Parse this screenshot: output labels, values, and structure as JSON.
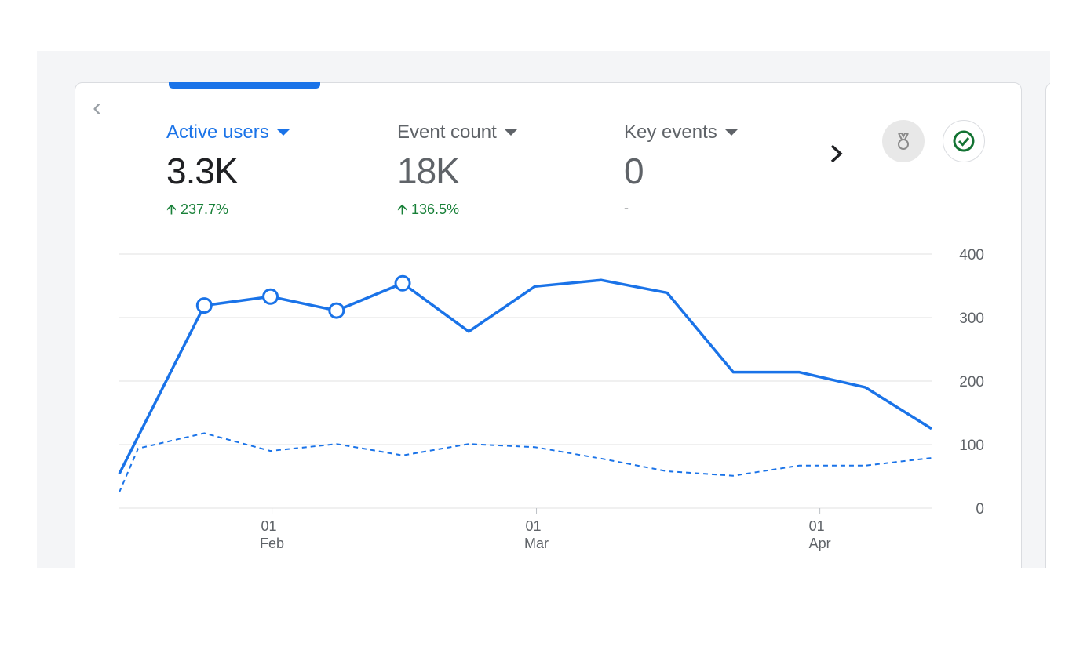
{
  "metrics": [
    {
      "label": "Active users",
      "value": "3.3K",
      "change": "237.7%",
      "direction": "up",
      "active": true
    },
    {
      "label": "Event count",
      "value": "18K",
      "change": "136.5%",
      "direction": "up",
      "active": false
    },
    {
      "label": "Key events",
      "value": "0",
      "change": "-",
      "direction": "none",
      "active": false
    }
  ],
  "icons": {
    "prev": "chevron-left-icon",
    "next": "chevron-right-icon",
    "badge": "medal-icon",
    "status": "check-circle-icon"
  },
  "colors": {
    "accent": "#1a73e8",
    "positive": "#188038"
  },
  "chart_data": {
    "type": "line",
    "ylim": [
      0,
      400
    ],
    "yticks": [
      "0",
      "100",
      "200",
      "300",
      "400"
    ],
    "xrange": [
      "2025-01-16",
      "2025-04-12"
    ],
    "xticks": [
      {
        "date": "2025-02-01",
        "day": "01",
        "month": "Feb"
      },
      {
        "date": "2025-03-01",
        "day": "01",
        "month": "Mar"
      },
      {
        "date": "2025-04-01",
        "day": "01",
        "month": "Apr"
      }
    ],
    "grid": true,
    "series": [
      {
        "style": "solid",
        "points": [
          [
            "2025-01-16",
            54
          ],
          [
            "2025-01-25",
            319
          ],
          [
            "2025-02-01",
            333
          ],
          [
            "2025-02-08",
            311
          ],
          [
            "2025-02-15",
            354
          ],
          [
            "2025-02-22",
            278
          ],
          [
            "2025-03-01",
            349
          ],
          [
            "2025-03-08",
            359
          ],
          [
            "2025-03-15",
            339
          ],
          [
            "2025-03-22",
            214
          ],
          [
            "2025-03-29",
            214
          ],
          [
            "2025-04-05",
            190
          ],
          [
            "2025-04-12",
            125
          ]
        ],
        "highlighted": [
          "2025-01-25",
          "2025-02-01",
          "2025-02-08",
          "2025-02-15"
        ]
      },
      {
        "style": "dashed",
        "points": [
          [
            "2025-01-16",
            25
          ],
          [
            "2025-01-18",
            94
          ],
          [
            "2025-01-25",
            118
          ],
          [
            "2025-02-01",
            90
          ],
          [
            "2025-02-08",
            101
          ],
          [
            "2025-02-15",
            83
          ],
          [
            "2025-02-22",
            101
          ],
          [
            "2025-03-01",
            96
          ],
          [
            "2025-03-08",
            78
          ],
          [
            "2025-03-15",
            58
          ],
          [
            "2025-03-22",
            51
          ],
          [
            "2025-03-29",
            67
          ],
          [
            "2025-04-05",
            67
          ],
          [
            "2025-04-12",
            79
          ]
        ]
      }
    ]
  }
}
